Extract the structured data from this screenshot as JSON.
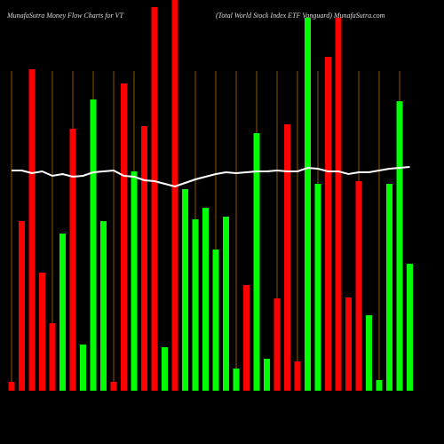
{
  "chart_data": {
    "type": "bar",
    "title": "MunafaSutra  Money Flow  Charts for VT",
    "subtitle": "(Total World Stock Index ETF Vanguard) MunafaSutra.com",
    "values": [
      10,
      191,
      362,
      133,
      76,
      177,
      295,
      52,
      328,
      191,
      10,
      346,
      247,
      298,
      432,
      49,
      440,
      227,
      193,
      206,
      159,
      196,
      25,
      119,
      290,
      36,
      104,
      300,
      33,
      420,
      233,
      376,
      420,
      105,
      236,
      85,
      12,
      233,
      326,
      143
    ],
    "colors": [
      "#ff0000",
      "#ff0000",
      "#ff0000",
      "#ff0000",
      "#ff0000",
      "#00ff00",
      "#ff0000",
      "#00ff00",
      "#00ff00",
      "#00ff00",
      "#ff0000",
      "#ff0000",
      "#00ff00",
      "#ff0000",
      "#ff0000",
      "#00ff00",
      "#ff0000",
      "#00ff00",
      "#00ff00",
      "#00ff00",
      "#00ff00",
      "#00ff00",
      "#00ff00",
      "#ff0000",
      "#00ff00",
      "#00ff00",
      "#ff0000",
      "#ff0000",
      "#ff0000",
      "#00ff00",
      "#00ff00",
      "#ff0000",
      "#ff0000",
      "#ff0000",
      "#ff0000",
      "#00ff00",
      "#00ff00",
      "#00ff00",
      "#00ff00",
      "#00ff00"
    ],
    "line": {
      "color": "#ffffff",
      "values": [
        248,
        248,
        245,
        247,
        242,
        244,
        241,
        242,
        246,
        247,
        248,
        242,
        241,
        237,
        236,
        233,
        230,
        234,
        238,
        241,
        244,
        246,
        245,
        246,
        247,
        247,
        248,
        247,
        247,
        251,
        250,
        247,
        247,
        244,
        246,
        246,
        248,
        250,
        251,
        252
      ]
    },
    "ylim": [
      0,
      440
    ]
  }
}
